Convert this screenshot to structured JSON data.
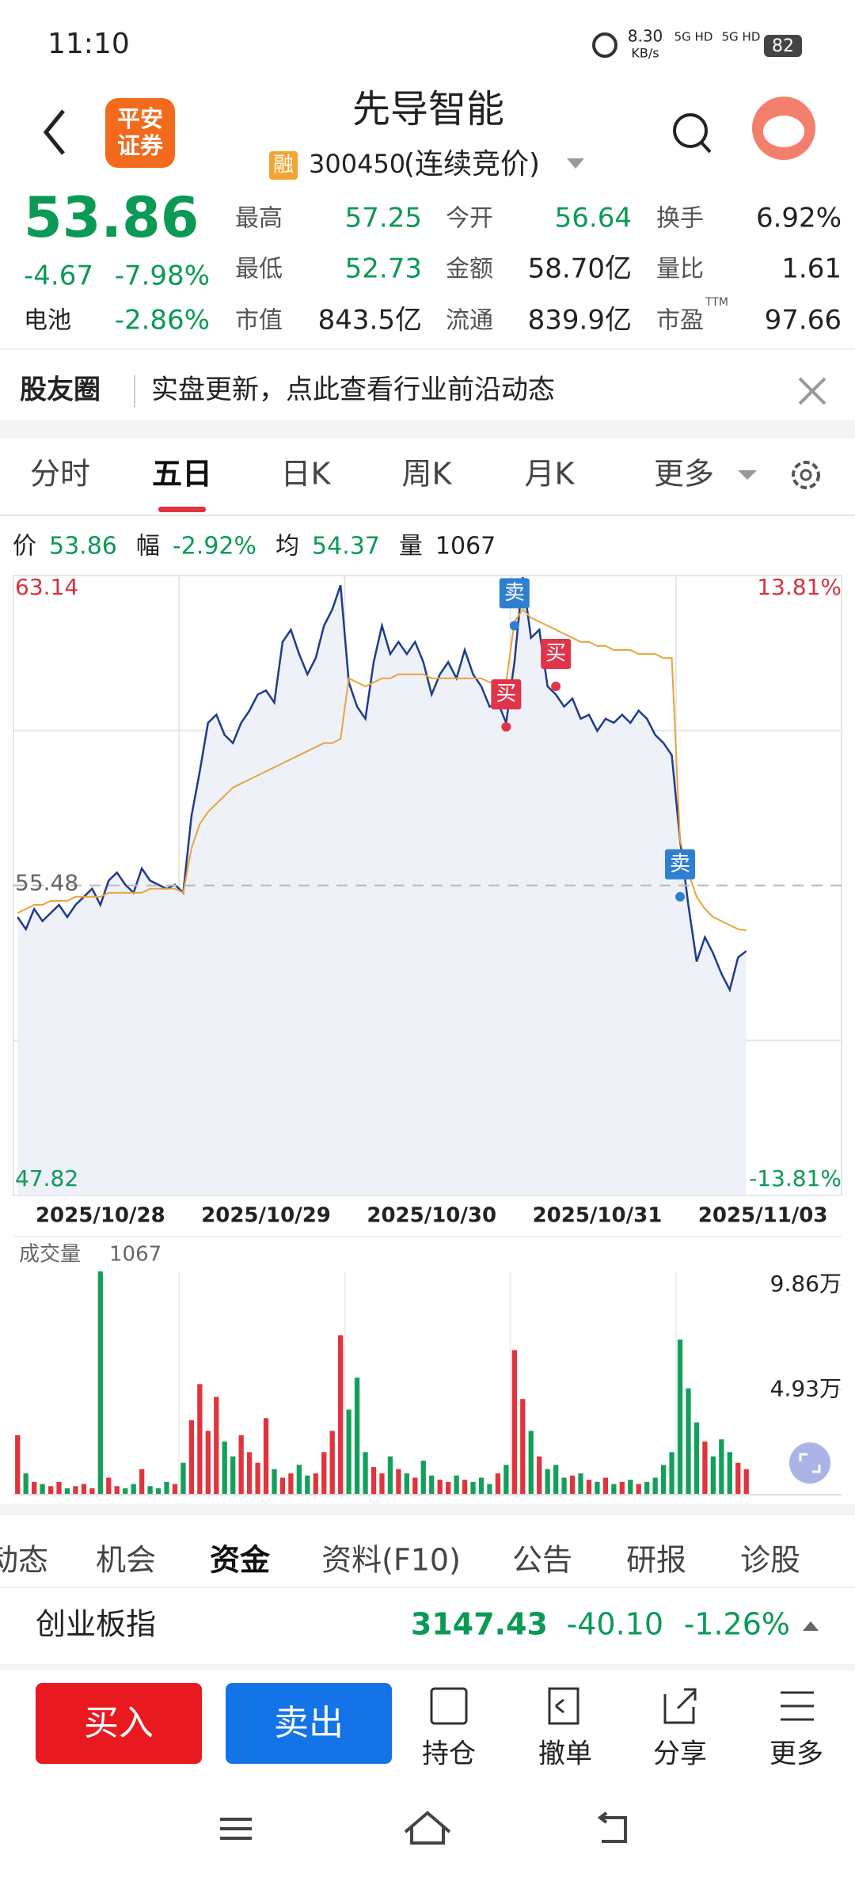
{
  "status_bar": {
    "time": "11:10",
    "speed": "8.30",
    "speed_unit": "KB/s",
    "network": "5G HD",
    "battery": "82"
  },
  "header": {
    "logo_top": "平安",
    "logo_bottom": "证券",
    "title": "先导智能",
    "margin_badge": "融",
    "code": "300450",
    "status": "(连续竞价)"
  },
  "quote": {
    "price": "53.86",
    "change": "-4.67",
    "change_pct": "-7.98%",
    "sector": "电池",
    "sector_pct": "-2.86%",
    "stats": [
      {
        "label": "最高",
        "value": "57.25",
        "color": "#0b9a55"
      },
      {
        "label": "今开",
        "value": "56.64",
        "color": "#0b9a55"
      },
      {
        "label": "换手",
        "value": "6.92%",
        "color": "#222222"
      },
      {
        "label": "最低",
        "value": "52.73",
        "color": "#0b9a55"
      },
      {
        "label": "金额",
        "value": "58.70亿",
        "color": "#222222"
      },
      {
        "label": "量比",
        "value": "1.61",
        "color": "#222222"
      },
      {
        "label": "市值",
        "value": "843.5亿",
        "color": "#222222"
      },
      {
        "label": "流通",
        "value": "839.9亿",
        "color": "#222222"
      },
      {
        "label": "市盈",
        "sup": "TTM",
        "value": "97.66",
        "color": "#222222"
      }
    ]
  },
  "banner": {
    "label": "股友圈",
    "text": "实盘更新，点此查看行业前沿动态"
  },
  "period_tabs": {
    "items": [
      "分时",
      "五日",
      "日K",
      "周K",
      "月K",
      "更多"
    ],
    "active": 1
  },
  "price_chart": {
    "type": "line",
    "info": [
      {
        "label": "价",
        "value": "53.86"
      },
      {
        "label": "幅",
        "value": "-2.92%"
      },
      {
        "label": "均",
        "value": "54.37"
      },
      {
        "label": "量",
        "value": "1067"
      }
    ],
    "categories": [
      null,
      null,
      null,
      null,
      null,
      null,
      null,
      null,
      null,
      null,
      "2025/10/28",
      null,
      null,
      null,
      null,
      null,
      null,
      null,
      null,
      null,
      null,
      null,
      null,
      null,
      null,
      null,
      null,
      null,
      null,
      null,
      "2025/10/29",
      null,
      null,
      null,
      null,
      null,
      null,
      null,
      null,
      null,
      null,
      null,
      null,
      null,
      null,
      null,
      null,
      null,
      null,
      null,
      "2025/10/30",
      null,
      null,
      null,
      null,
      null,
      null,
      null,
      null,
      null,
      null,
      null,
      null,
      null,
      null,
      null,
      null,
      null,
      null,
      null,
      "2025/10/31",
      null,
      null,
      null,
      null,
      null,
      null,
      null,
      null,
      null,
      null,
      null,
      null,
      null,
      null,
      null,
      null,
      null,
      null,
      null,
      "2025/11/03",
      null,
      null,
      null,
      null,
      null,
      null,
      null,
      null,
      null
    ],
    "series": [
      {
        "color": "#1f3b8c",
        "values": [
          54.7,
          54.4,
          54.9,
          54.6,
          54.8,
          55.0,
          54.7,
          55.0,
          55.2,
          55.4,
          55.0,
          55.6,
          55.8,
          55.5,
          55.3,
          55.9,
          55.6,
          55.5,
          55.4,
          55.5,
          55.3,
          57.2,
          58.3,
          59.5,
          59.7,
          59.2,
          59.0,
          59.5,
          59.8,
          60.2,
          60.3,
          60.0,
          61.5,
          61.8,
          61.2,
          60.7,
          61.1,
          61.9,
          62.3,
          62.9,
          60.5,
          59.9,
          59.6,
          61.0,
          61.9,
          61.2,
          61.5,
          61.2,
          61.5,
          61.0,
          60.2,
          60.7,
          61.0,
          60.6,
          61.3,
          60.7,
          60.4,
          59.9,
          60.0,
          59.5,
          61.0,
          63.1,
          61.6,
          61.8,
          60.4,
          60.2,
          59.9,
          60.1,
          59.6,
          59.7,
          59.3,
          59.6,
          59.5,
          59.7,
          59.5,
          59.8,
          59.6,
          59.2,
          59.0,
          58.7,
          56.6,
          55.0,
          53.6,
          54.2,
          53.8,
          53.3,
          52.9,
          53.7,
          53.86,
          null,
          null,
          null,
          null,
          null,
          null,
          null,
          null,
          null,
          null,
          null
        ]
      },
      {
        "color": "#e9a43c",
        "values": [
          54.8,
          54.9,
          55.0,
          55.0,
          55.1,
          55.1,
          55.1,
          55.2,
          55.2,
          55.2,
          55.2,
          55.3,
          55.3,
          55.3,
          55.3,
          55.3,
          55.4,
          55.4,
          55.4,
          55.4,
          55.3,
          56.4,
          57.0,
          57.3,
          57.5,
          57.7,
          57.9,
          58.0,
          58.1,
          58.2,
          58.3,
          58.4,
          58.5,
          58.6,
          58.7,
          58.8,
          58.9,
          59.0,
          59.0,
          59.1,
          60.6,
          60.5,
          60.4,
          60.5,
          60.6,
          60.6,
          60.7,
          60.7,
          60.7,
          60.7,
          60.6,
          60.6,
          60.6,
          60.6,
          60.6,
          60.6,
          60.6,
          60.5,
          60.5,
          60.5,
          62.0,
          62.3,
          62.1,
          62.0,
          61.9,
          61.8,
          61.7,
          61.6,
          61.5,
          61.5,
          61.4,
          61.4,
          61.3,
          61.3,
          61.3,
          61.2,
          61.2,
          61.2,
          61.1,
          61.1,
          56.6,
          55.8,
          55.2,
          54.9,
          54.7,
          54.6,
          54.5,
          54.4,
          54.37,
          null,
          null,
          null,
          null,
          null,
          null,
          null,
          null,
          null,
          null,
          null
        ]
      }
    ],
    "area_color": "#eef1f8",
    "ylim": [
      47.82,
      63.14
    ],
    "yticks": [
      {
        "value": 63.14,
        "label": "63.14",
        "color": "#d9303e"
      },
      {
        "value": 55.48,
        "label": "55.48",
        "color": "#666666"
      },
      {
        "value": 47.82,
        "label": "47.82",
        "color": "#0b9a55"
      }
    ],
    "y2lim": [
      -13.81,
      13.81
    ],
    "y2ticks": [
      {
        "value": 13.81,
        "label": "13.81%",
        "color": "#d9303e"
      },
      {
        "value": -13.81,
        "label": "-13.81%",
        "color": "#0b9a55"
      }
    ],
    "trades": [
      {
        "label": "买",
        "i": 59,
        "price": 59.4,
        "color": "#e0344a"
      },
      {
        "label": "卖",
        "i": 60,
        "price": 61.9,
        "color": "#2f7fd0"
      },
      {
        "label": "买",
        "i": 65,
        "price": 60.4,
        "color": "#e0344a"
      },
      {
        "label": "卖",
        "i": 80,
        "price": 55.2,
        "color": "#2f7fd0"
      }
    ]
  },
  "volume_chart": {
    "type": "bar",
    "title": "成交量",
    "current": "1067",
    "values": [
      2.8,
      1.0,
      0.6,
      0.5,
      0.4,
      0.6,
      0.3,
      0.4,
      0.5,
      0.3,
      10.5,
      0.8,
      0.4,
      0.3,
      0.5,
      1.2,
      0.4,
      0.3,
      0.6,
      0.5,
      1.5,
      3.5,
      5.2,
      3.0,
      4.6,
      2.5,
      1.8,
      2.8,
      2.0,
      1.5,
      3.6,
      1.2,
      0.8,
      1.0,
      1.4,
      0.9,
      1.0,
      2.0,
      3.0,
      7.5,
      4.0,
      5.5,
      2.0,
      1.3,
      1.0,
      1.8,
      1.2,
      1.0,
      0.8,
      1.6,
      0.9,
      0.7,
      0.6,
      0.9,
      0.7,
      0.6,
      0.8,
      0.5,
      1.0,
      1.4,
      6.8,
      4.5,
      3.0,
      1.8,
      1.2,
      1.4,
      0.8,
      0.9,
      1.0,
      0.7,
      0.6,
      0.8,
      0.5,
      0.6,
      0.7,
      0.5,
      0.6,
      0.8,
      1.4,
      2.0,
      7.3,
      5.0,
      3.4,
      2.5,
      1.8,
      2.6,
      2.0,
      1.5,
      1.2,
      null,
      null,
      null,
      null,
      null,
      null,
      null,
      null,
      null,
      null,
      null
    ],
    "ylim": [
      0,
      10.5
    ],
    "yticks": [
      {
        "value": 9.86,
        "label": "9.86万"
      },
      {
        "value": 4.93,
        "label": "4.93万"
      }
    ],
    "up_color": "#e0343e",
    "down_color": "#14a05c"
  },
  "bottom_tabs": {
    "items": [
      "动态",
      "机会",
      "资金",
      "资料(F10)",
      "公告",
      "研报",
      "诊股"
    ],
    "active": 2
  },
  "index_bar": {
    "name": "创业板指",
    "value": "3147.43",
    "change": "-40.10",
    "change_pct": "-1.26%"
  },
  "actions": {
    "buy": "买入",
    "sell": "卖出",
    "items": [
      "持仓",
      "撤单",
      "分享",
      "更多"
    ]
  }
}
